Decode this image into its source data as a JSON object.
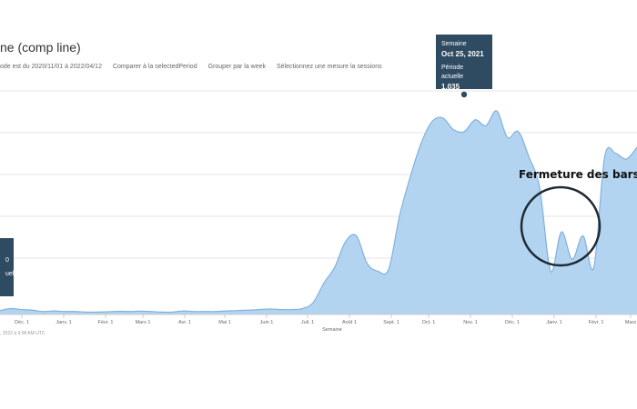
{
  "header": {
    "title": "ne (comp line)",
    "subtitle_items": [
      "ode est du 2020/11/01 à 2022/04/12",
      "Comparer à la selectedPeriod",
      "Grouper par la week",
      "Sélectionnez une mesure la sessions"
    ]
  },
  "tooltip_main": {
    "label1": "Semaine",
    "value1": "Oct 25, 2021",
    "label2": "Période actuelle",
    "value2": "1,035"
  },
  "tooltip_left": {
    "line1": "0",
    "line2": "uelle"
  },
  "annotation": {
    "text": "Fermeture des bars"
  },
  "footer": {
    "text": ", 2022 à 9:08 AM UTC"
  },
  "chart_data": {
    "type": "area",
    "xlabel": "Semaine",
    "x_ticks": [
      "Déc. 1",
      "Janv. 1",
      "Févr. 1",
      "Mars 1",
      "Avr. 1",
      "Mai 1",
      "Juin 1",
      "Juil. 1",
      "Août 1",
      "Sept. 1",
      "Oct. 1",
      "Nov. 1",
      "Déc. 1",
      "Janv. 1",
      "Févr. 1",
      "Mars"
    ],
    "series": [
      {
        "values": [
          20,
          30,
          25,
          22,
          15,
          18,
          15,
          15,
          12,
          12,
          14,
          16,
          15,
          17,
          15,
          12,
          12,
          18,
          15,
          15,
          15,
          18,
          20,
          22,
          25,
          28,
          25,
          25,
          30,
          60,
          160,
          240,
          370,
          400,
          260,
          220,
          230,
          500,
          700,
          870,
          980,
          1000,
          940,
          930,
          990,
          960,
          1035,
          900,
          930,
          800,
          640,
          220,
          420,
          280,
          400,
          240,
          800,
          820,
          790,
          850
        ]
      }
    ],
    "highlight": {
      "x": "Oct 25, 2021",
      "value": 1035
    },
    "ylim": [
      0,
      1100
    ],
    "grid": true,
    "fill_color": "#b3d4f1",
    "line_color": "#7fb1dd",
    "tooltip_color": "#2f4b62"
  }
}
